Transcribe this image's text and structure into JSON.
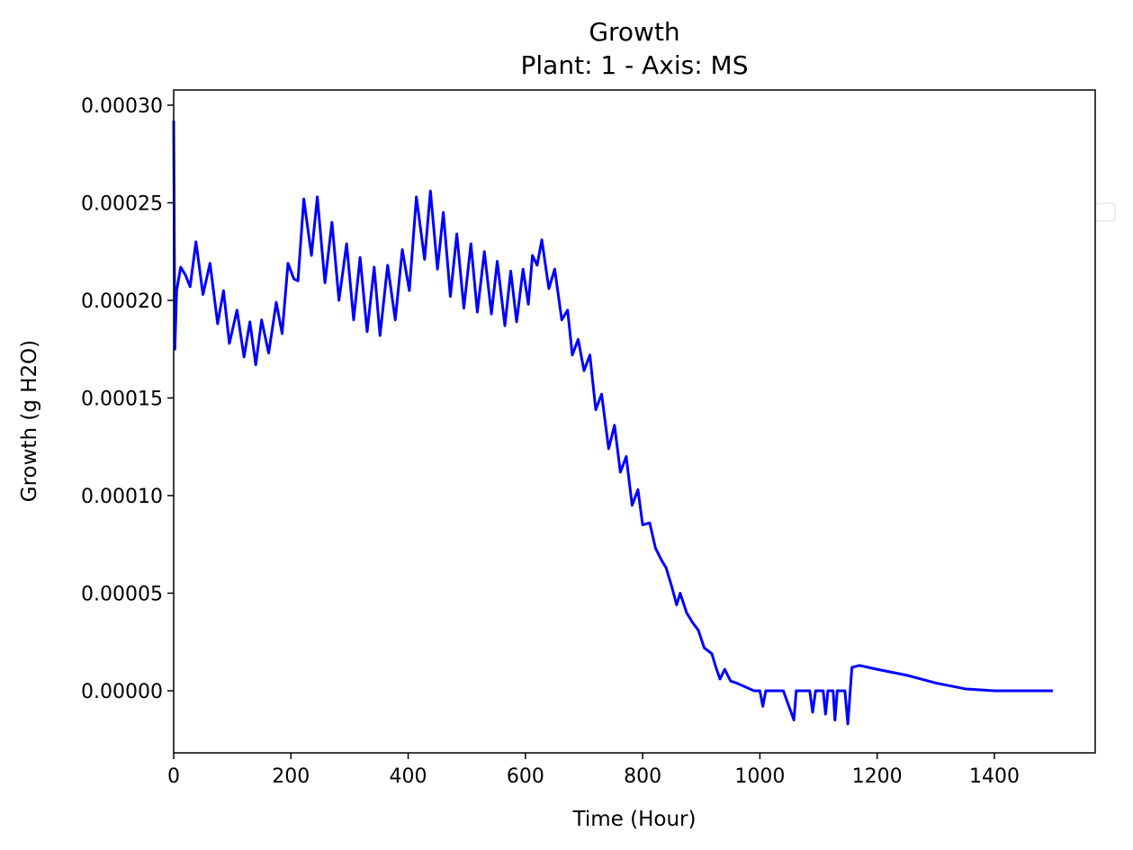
{
  "chart_data": {
    "type": "line",
    "title": "Growth",
    "subtitle": "Plant: 1 - Axis: MS",
    "xlabel": "Time (Hour)",
    "ylabel": "Growth (g H2O)",
    "color": "#0000ff",
    "xlim": [
      0,
      1572
    ],
    "ylim": [
      -3.18e-05,
      0.0003078
    ],
    "xticks": [
      0,
      200,
      400,
      600,
      800,
      1000,
      1200,
      1400
    ],
    "yticks": [
      {
        "value": 0,
        "label": "0.00000"
      },
      {
        "value": 5e-05,
        "label": "0.00005"
      },
      {
        "value": 0.0001,
        "label": "0.00010"
      },
      {
        "value": 0.00015,
        "label": "0.00015"
      },
      {
        "value": 0.0002,
        "label": "0.00020"
      },
      {
        "value": 0.00025,
        "label": "0.00025"
      },
      {
        "value": 0.0003,
        "label": "0.00030"
      }
    ],
    "x": [
      0,
      2,
      5,
      12,
      20,
      28,
      38,
      50,
      62,
      75,
      85,
      95,
      108,
      120,
      130,
      140,
      150,
      162,
      175,
      185,
      195,
      205,
      212,
      222,
      235,
      245,
      258,
      270,
      282,
      295,
      307,
      318,
      330,
      342,
      352,
      365,
      378,
      390,
      402,
      414,
      428,
      438,
      450,
      460,
      472,
      483,
      495,
      507,
      518,
      530,
      542,
      552,
      565,
      575,
      585,
      596,
      605,
      612,
      620,
      628,
      640,
      650,
      662,
      672,
      680,
      690,
      700,
      710,
      720,
      730,
      742,
      752,
      762,
      772,
      782,
      792,
      800,
      812,
      822,
      832,
      840,
      850,
      858,
      864,
      875,
      885,
      895,
      905,
      918,
      925,
      932,
      940,
      950,
      960,
      975,
      990,
      1000,
      1005,
      1010,
      1040,
      1058,
      1062,
      1085,
      1090,
      1095,
      1108,
      1112,
      1116,
      1125,
      1128,
      1132,
      1145,
      1150,
      1157,
      1170,
      1200,
      1250,
      1300,
      1350,
      1400,
      1500
    ],
    "values": [
      0.000292,
      0.000175,
      0.000205,
      0.000217,
      0.000213,
      0.000207,
      0.00023,
      0.000203,
      0.000219,
      0.000188,
      0.000205,
      0.000178,
      0.000195,
      0.000171,
      0.000189,
      0.000167,
      0.00019,
      0.000173,
      0.000199,
      0.000183,
      0.000219,
      0.000211,
      0.00021,
      0.000252,
      0.000223,
      0.000253,
      0.000209,
      0.00024,
      0.0002,
      0.000229,
      0.00019,
      0.000222,
      0.000184,
      0.000217,
      0.000182,
      0.000218,
      0.00019,
      0.000226,
      0.000205,
      0.000253,
      0.000221,
      0.000256,
      0.000216,
      0.000245,
      0.000202,
      0.000234,
      0.000196,
      0.000229,
      0.000194,
      0.000225,
      0.000193,
      0.00022,
      0.000187,
      0.000215,
      0.000189,
      0.000216,
      0.000198,
      0.000223,
      0.000218,
      0.000231,
      0.000206,
      0.000216,
      0.00019,
      0.000195,
      0.000172,
      0.00018,
      0.000164,
      0.000172,
      0.000144,
      0.000152,
      0.000124,
      0.000136,
      0.000112,
      0.00012,
      9.5e-05,
      0.000103,
      8.5e-05,
      8.6e-05,
      7.3e-05,
      6.7e-05,
      6.3e-05,
      5.3e-05,
      4.4e-05,
      5e-05,
      4e-05,
      3.5e-05,
      3.1e-05,
      2.2e-05,
      1.9e-05,
      1.2e-05,
      6e-06,
      1.1e-05,
      5e-06,
      4e-06,
      2e-06,
      0,
      0,
      -8e-06,
      0,
      0,
      -1.5e-05,
      0,
      0,
      -1.1e-05,
      0,
      0,
      -1.2e-05,
      0,
      0,
      -1.5e-05,
      0,
      0,
      -1.7e-05,
      1.2e-05,
      1.3e-05,
      1.1e-05,
      8e-06,
      4e-06,
      1e-06,
      0,
      0
    ]
  }
}
